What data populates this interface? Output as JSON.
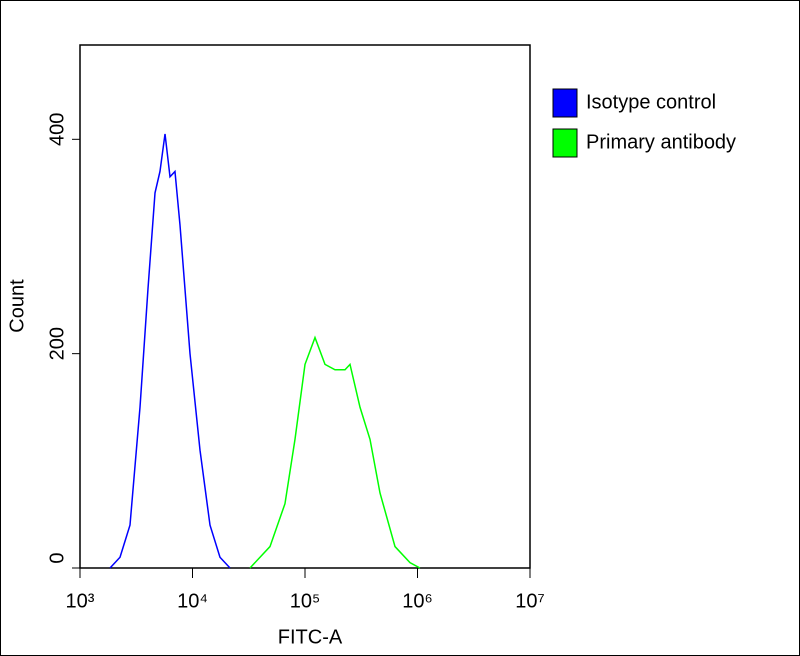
{
  "chart_data": {
    "type": "line",
    "x_label": "FITC-A",
    "y_label": "Count",
    "xscale": "log",
    "xlim": [
      1000,
      10000000
    ],
    "ylim": [
      0,
      488
    ],
    "xticks": [
      {
        "value": 1000,
        "label": "10³"
      },
      {
        "value": 10000,
        "label": "10⁴"
      },
      {
        "value": 100000,
        "label": "10⁵"
      },
      {
        "value": 1000000,
        "label": "10⁶"
      },
      {
        "value": 10000000,
        "label": "10⁷"
      }
    ],
    "yticks": [
      0,
      200,
      400
    ],
    "legend": "top-right-outside",
    "series": [
      {
        "name": "Isotype control",
        "color": "#0000ff",
        "x": [
          1849,
          2268,
          2782,
          3415,
          4018,
          4642,
          5139,
          5698,
          6310,
          6985,
          7742,
          9502,
          11659,
          14306,
          17547,
          21544
        ],
        "values": [
          0,
          10,
          40,
          150,
          260,
          350,
          370,
          405,
          365,
          370,
          320,
          200,
          110,
          40,
          10,
          0
        ]
      },
      {
        "name": "Primary antibody",
        "color": "#00ff00",
        "x": [
          32430,
          48840,
          66370,
          81470,
          100000,
          122700,
          150600,
          184800,
          226800,
          251200,
          308300,
          378400,
          464200,
          631000,
          857700,
          1052000
        ],
        "values": [
          0,
          20,
          60,
          120,
          190,
          215,
          190,
          185,
          185,
          190,
          150,
          120,
          70,
          20,
          5,
          0
        ]
      }
    ]
  }
}
